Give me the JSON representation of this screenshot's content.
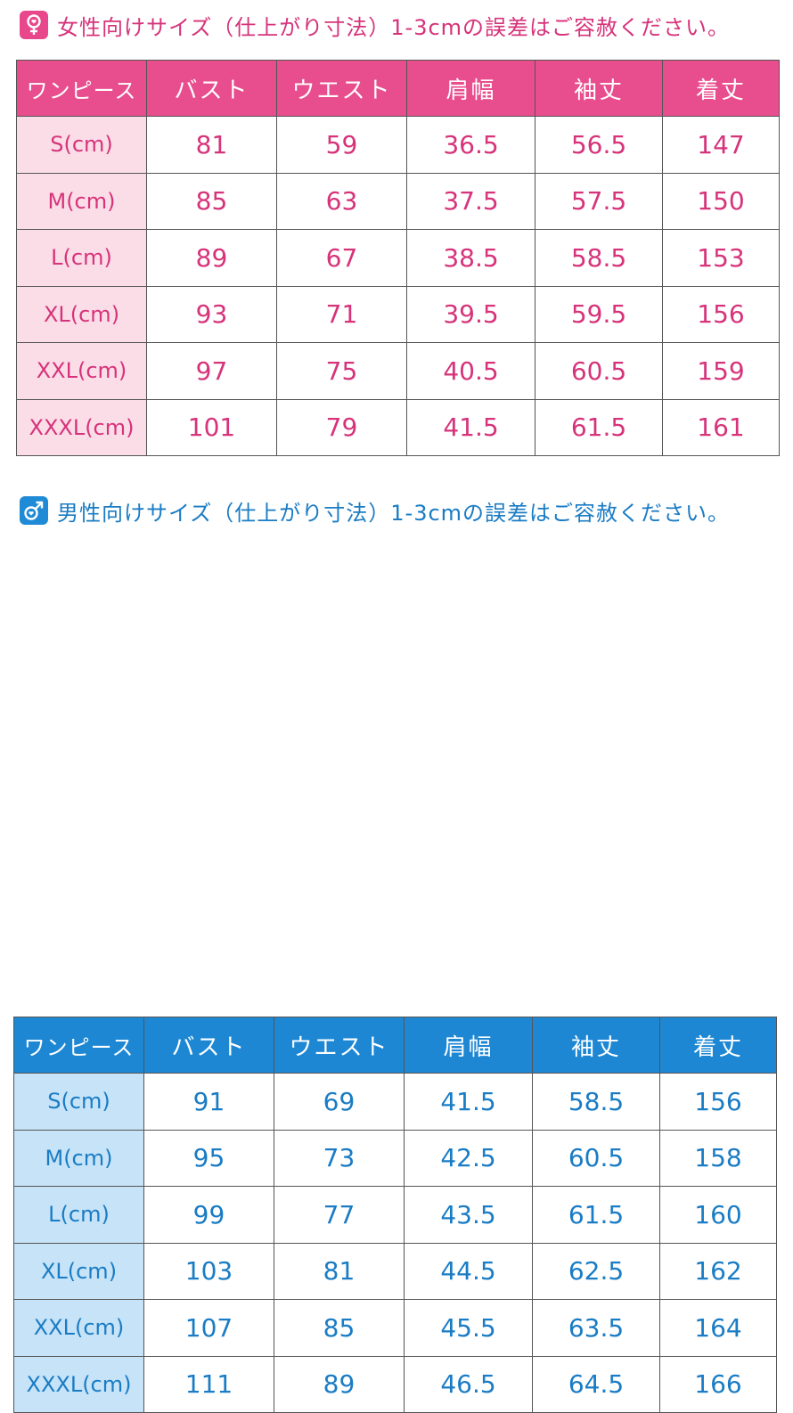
{
  "women": {
    "title": "女性向けサイズ（仕上がり寸法）1-3cmの誤差はご容赦ください。",
    "icon": "female-symbol-icon",
    "color": "#e84d8e",
    "headers": [
      "ワンピース",
      "バスト",
      "ウエスト",
      "肩幅",
      "袖丈",
      "着丈"
    ],
    "rows": [
      [
        "S(cm)",
        "81",
        "59",
        "36.5",
        "56.5",
        "147"
      ],
      [
        "M(cm)",
        "85",
        "63",
        "37.5",
        "57.5",
        "150"
      ],
      [
        "L(cm)",
        "89",
        "67",
        "38.5",
        "58.5",
        "153"
      ],
      [
        "XL(cm)",
        "93",
        "71",
        "39.5",
        "59.5",
        "156"
      ],
      [
        "XXL(cm)",
        "97",
        "75",
        "40.5",
        "60.5",
        "159"
      ],
      [
        "XXXL(cm)",
        "101",
        "79",
        "41.5",
        "61.5",
        "161"
      ]
    ]
  },
  "men": {
    "title": "男性向けサイズ（仕上がり寸法）1-3cmの誤差はご容赦ください。",
    "icon": "male-symbol-icon",
    "color": "#1d87d3",
    "headers": [
      "ワンピース",
      "バスト",
      "ウエスト",
      "肩幅",
      "袖丈",
      "着丈"
    ],
    "rows": [
      [
        "S(cm)",
        "91",
        "69",
        "41.5",
        "58.5",
        "156"
      ],
      [
        "M(cm)",
        "95",
        "73",
        "42.5",
        "60.5",
        "158"
      ],
      [
        "L(cm)",
        "99",
        "77",
        "43.5",
        "61.5",
        "160"
      ],
      [
        "XL(cm)",
        "103",
        "81",
        "44.5",
        "62.5",
        "162"
      ],
      [
        "XXL(cm)",
        "107",
        "85",
        "45.5",
        "63.5",
        "164"
      ],
      [
        "XXXL(cm)",
        "111",
        "89",
        "46.5",
        "64.5",
        "166"
      ]
    ]
  }
}
